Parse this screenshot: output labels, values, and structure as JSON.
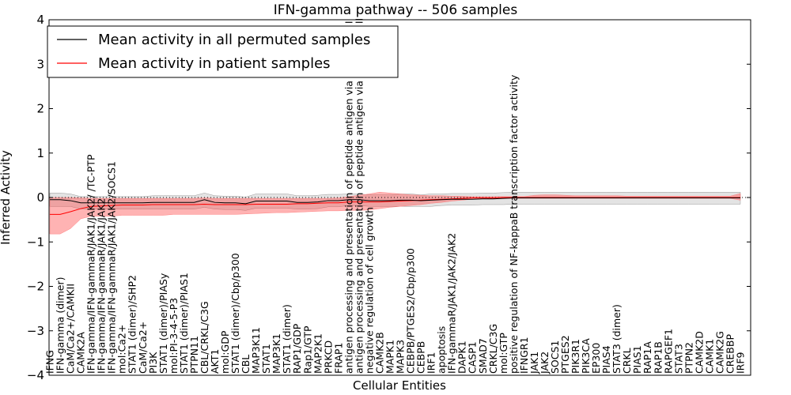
{
  "chart_data": {
    "type": "line",
    "title": "IFN-gamma pathway -- 506 samples",
    "xlabel": "Cellular Entities",
    "ylabel": "Inferred Activity",
    "ylim": [
      -4,
      4
    ],
    "yticks": [
      -4,
      -3,
      -2,
      -1,
      0,
      1,
      2,
      3,
      4
    ],
    "legend": "top-left",
    "categories": [
      "IFNG",
      "IFN-gamma (dimer)",
      "CaM/Ca2+/CAMKII",
      "CAMK2A",
      "IFN-gamma/IFN-gammaR/JAK1/JAK2/ /TC-PTP",
      "IFN-gamma/IFN-gammaR/JAK1/JAK2",
      "IFN-gamma/IFN-gammaR/JAK1/JAK2/SOCS1",
      "mol:Ca2+",
      "STAT1 (dimer)/SHP2",
      "CaM/Ca2+",
      "PI3K",
      "STAT1 (dimer)/PIASy",
      "mol:PI-3-4-5-P3",
      "STAT1 (dimer)/PIAS1",
      "PTPN11",
      "CBL/CRKL/C3G",
      "AKT1",
      "mol:GDP",
      "STAT1 (dimer)/Cbp/p300",
      "CBL",
      "MAP3K11",
      "STAT1",
      "MAP3K1",
      "STAT1 (dimer)",
      "RAP1/GDP",
      "Rap1/GTP",
      "MAP2K1",
      "PRKCD",
      "FRAP1",
      "antigen processing and presentation of peptide antigen via MHC class I",
      "antigen processing and presentation of peptide antigen via MHC class II",
      "negative regulation of cell growth",
      "CAMK2B",
      "MAPK1",
      "MAPK3",
      "CEBPB/PTGES2/Cbp/p300",
      "CEBPB",
      "IRF1",
      "apoptosis",
      "IFN-gammaR/JAK1/JAK2/JAK2",
      "DAPK1",
      "CASP1",
      "SMAD7",
      "CRKL/C3G",
      "mol:GTP",
      "positive regulation of NF-kappaB transcription factor activity",
      "IFNGR1",
      "JAK1",
      "JAK2",
      "SOCS1",
      "PTGES2",
      "PIK3R1",
      "PIK3CA",
      "EP300",
      "PIAS4",
      "STAT3 (dimer)",
      "CRKL",
      "PIAS1",
      "RAP1A",
      "RAP1B",
      "RAPGEF1",
      "STAT3",
      "PTPN2",
      "CAMK2D",
      "CAMK1",
      "CAMK2G",
      "CREBBP",
      "IRF9"
    ],
    "series": [
      {
        "name": "Mean activity in all permuted samples",
        "color": "#000000",
        "values": [
          -0.05,
          -0.05,
          -0.07,
          -0.12,
          -0.12,
          -0.12,
          -0.12,
          -0.12,
          -0.12,
          -0.12,
          -0.11,
          -0.11,
          -0.11,
          -0.11,
          -0.11,
          -0.05,
          -0.11,
          -0.12,
          -0.12,
          -0.14,
          -0.08,
          -0.08,
          -0.08,
          -0.08,
          -0.11,
          -0.11,
          -0.1,
          -0.07,
          -0.07,
          -0.05,
          -0.05,
          -0.07,
          -0.07,
          -0.07,
          -0.06,
          -0.06,
          -0.07,
          -0.06,
          -0.05,
          -0.04,
          -0.04,
          -0.04,
          -0.03,
          -0.03,
          -0.02,
          -0.01,
          -0.01,
          -0.01,
          -0.01,
          -0.01,
          -0.01,
          -0.01,
          -0.01,
          -0.01,
          -0.01,
          -0.01,
          -0.01,
          -0.01,
          -0.01,
          -0.01,
          -0.01,
          -0.01,
          -0.01,
          -0.01,
          -0.01,
          -0.01,
          -0.01,
          -0.01
        ],
        "lower": [
          -0.2,
          -0.2,
          -0.2,
          -0.26,
          -0.26,
          -0.26,
          -0.26,
          -0.26,
          -0.26,
          -0.26,
          -0.26,
          -0.26,
          -0.26,
          -0.26,
          -0.26,
          -0.22,
          -0.26,
          -0.27,
          -0.27,
          -0.29,
          -0.24,
          -0.24,
          -0.24,
          -0.24,
          -0.26,
          -0.26,
          -0.25,
          -0.21,
          -0.21,
          -0.18,
          -0.18,
          -0.2,
          -0.2,
          -0.2,
          -0.2,
          -0.2,
          -0.2,
          -0.2,
          -0.18,
          -0.17,
          -0.17,
          -0.17,
          -0.16,
          -0.16,
          -0.16,
          -0.15,
          -0.15,
          -0.15,
          -0.15,
          -0.15,
          -0.15,
          -0.15,
          -0.15,
          -0.15,
          -0.15,
          -0.15,
          -0.15,
          -0.15,
          -0.15,
          -0.15,
          -0.15,
          -0.15,
          -0.15,
          -0.15,
          -0.15,
          -0.15,
          -0.15,
          -0.15
        ],
        "upper": [
          0.1,
          0.1,
          0.08,
          0.02,
          0.02,
          0.02,
          0.02,
          0.02,
          0.02,
          0.02,
          0.04,
          0.04,
          0.04,
          0.04,
          0.04,
          0.1,
          0.04,
          0.03,
          0.03,
          0.01,
          0.08,
          0.08,
          0.08,
          0.08,
          0.04,
          0.04,
          0.05,
          0.07,
          0.07,
          0.08,
          0.08,
          0.06,
          0.06,
          0.06,
          0.08,
          0.08,
          0.06,
          0.08,
          0.08,
          0.09,
          0.09,
          0.09,
          0.1,
          0.1,
          0.11,
          0.12,
          0.12,
          0.12,
          0.12,
          0.12,
          0.12,
          0.12,
          0.12,
          0.12,
          0.12,
          0.12,
          0.12,
          0.12,
          0.12,
          0.12,
          0.12,
          0.12,
          0.12,
          0.12,
          0.12,
          0.12,
          0.12,
          0.12
        ]
      },
      {
        "name": "Mean activity in patient samples",
        "color": "#ff0000",
        "values": [
          -0.38,
          -0.38,
          -0.32,
          -0.25,
          -0.2,
          -0.19,
          -0.18,
          -0.17,
          -0.17,
          -0.17,
          -0.16,
          -0.16,
          -0.16,
          -0.16,
          -0.16,
          -0.15,
          -0.16,
          -0.16,
          -0.16,
          -0.16,
          -0.15,
          -0.15,
          -0.15,
          -0.15,
          -0.14,
          -0.14,
          -0.13,
          -0.12,
          -0.12,
          -0.1,
          -0.1,
          -0.1,
          -0.1,
          -0.09,
          -0.08,
          -0.07,
          -0.06,
          -0.05,
          -0.04,
          -0.03,
          -0.02,
          -0.01,
          -0.01,
          -0.01,
          0.0,
          0.0,
          0.0,
          0.0,
          0.0,
          0.0,
          0.0,
          0.0,
          0.0,
          0.0,
          0.0,
          0.0,
          0.0,
          0.0,
          0.0,
          0.0,
          0.0,
          0.0,
          0.0,
          0.0,
          0.0,
          0.0,
          0.0,
          0.0
        ],
        "lower": [
          -0.82,
          -0.82,
          -0.7,
          -0.48,
          -0.42,
          -0.42,
          -0.42,
          -0.4,
          -0.4,
          -0.4,
          -0.4,
          -0.4,
          -0.38,
          -0.38,
          -0.38,
          -0.38,
          -0.38,
          -0.38,
          -0.38,
          -0.37,
          -0.36,
          -0.35,
          -0.34,
          -0.34,
          -0.33,
          -0.32,
          -0.31,
          -0.3,
          -0.3,
          -0.29,
          -0.29,
          -0.28,
          -0.25,
          -0.22,
          -0.2,
          -0.18,
          -0.16,
          -0.13,
          -0.11,
          -0.08,
          -0.06,
          -0.04,
          -0.03,
          -0.02,
          -0.02,
          -0.02,
          -0.02,
          -0.02,
          -0.02,
          -0.02,
          -0.02,
          -0.02,
          -0.02,
          -0.02,
          -0.02,
          -0.02,
          -0.02,
          -0.02,
          -0.02,
          -0.02,
          -0.02,
          -0.02,
          -0.02,
          -0.02,
          -0.02,
          -0.02,
          -0.02,
          -0.06
        ],
        "upper": [
          0.0,
          0.0,
          0.0,
          -0.01,
          -0.02,
          -0.02,
          -0.02,
          -0.02,
          -0.02,
          -0.02,
          -0.02,
          -0.02,
          -0.02,
          -0.02,
          -0.02,
          -0.01,
          -0.02,
          -0.02,
          -0.02,
          -0.02,
          -0.02,
          -0.02,
          -0.02,
          -0.02,
          -0.02,
          -0.02,
          -0.02,
          -0.02,
          -0.01,
          0.02,
          0.05,
          0.08,
          0.12,
          0.1,
          0.08,
          0.06,
          0.05,
          0.04,
          0.04,
          0.03,
          0.03,
          0.02,
          0.02,
          0.02,
          0.02,
          0.02,
          0.02,
          0.05,
          0.06,
          0.06,
          0.05,
          0.04,
          0.04,
          0.04,
          0.04,
          0.04,
          0.03,
          0.03,
          0.03,
          0.03,
          0.03,
          0.03,
          0.03,
          0.03,
          0.03,
          0.03,
          0.03,
          0.09
        ]
      }
    ]
  }
}
